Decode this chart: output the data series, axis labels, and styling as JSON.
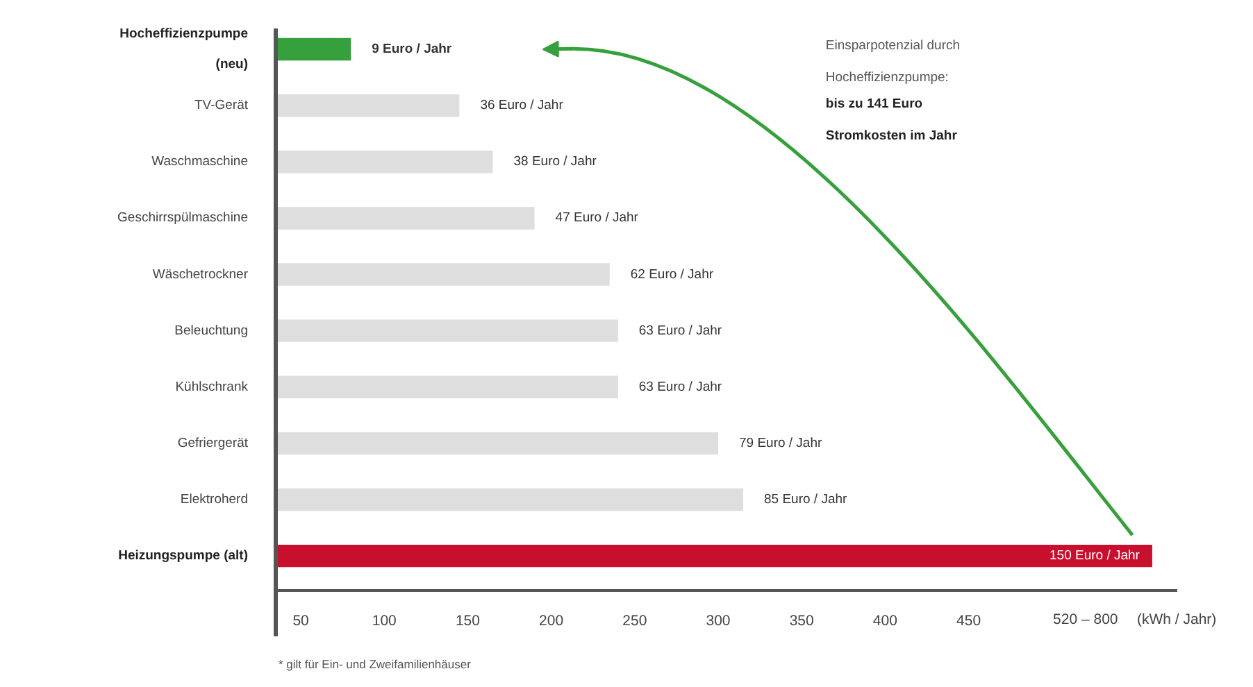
{
  "chart_data": {
    "type": "bar",
    "orientation": "horizontal",
    "categories": [
      "Hocheffizienzpumpe (neu)",
      "TV-Gerät",
      "Waschmaschine",
      "Geschirrspülmaschine",
      "Wäschetrockner",
      "Beleuchtung",
      "Kühlschrank",
      "Gefriergerät",
      "Elektroherd",
      "Heizungspumpe (alt)"
    ],
    "values": [
      80,
      145,
      165,
      190,
      235,
      240,
      240,
      300,
      315,
      560
    ],
    "colors": [
      "#36a03c",
      "#dedede",
      "#dedede",
      "#dedede",
      "#dedede",
      "#dedede",
      "#dedede",
      "#dedede",
      "#dedede",
      "#c8102e"
    ],
    "xlim": [
      35,
      575
    ],
    "xticks": [
      50,
      100,
      150,
      200,
      250,
      300,
      350,
      400,
      450,
      {
        "value": 520,
        "label": "520 – 800"
      }
    ],
    "xlabel": "(kWh / Jahr)",
    "annotations": [
      {
        "text": "9 Euro / Jahr",
        "x": 80,
        "y": "Hocheffizienzpumpe (neu)"
      },
      {
        "text": "36 Euro / Jahr",
        "x": 145,
        "y": "TV-Gerät"
      },
      {
        "text": "38 Euro / Jahr",
        "x": 165,
        "y": "Waschmaschine"
      },
      {
        "text": "47 Euro / Jahr",
        "x": 190,
        "y": "Geschirrspülmaschine"
      },
      {
        "text": "62 Euro / Jahr",
        "x": 235,
        "y": "Wäschetrockner"
      },
      {
        "text": "63 Euro / Jahr",
        "x": 240,
        "y": "Beleuchtung"
      },
      {
        "text": "63 Euro / Jahr",
        "x": 240,
        "y": "Kühlschrank"
      },
      {
        "text": "79 Euro / Jahr",
        "x": 300,
        "y": "Gefriergerät"
      },
      {
        "text": "85 Euro / Jahr",
        "x": 315,
        "y": "Elektroherd"
      },
      {
        "text": "150 Euro / Jahr",
        "x": 560,
        "y": "Heizungspumpe (alt)"
      },
      "Einsparpotenzial durch Hocheffizienzpumpe:",
      "bis zu 141 Euro Stromkosten im Jahr",
      "* gilt für Ein- und Zweifamilienhäuser"
    ]
  }
}
